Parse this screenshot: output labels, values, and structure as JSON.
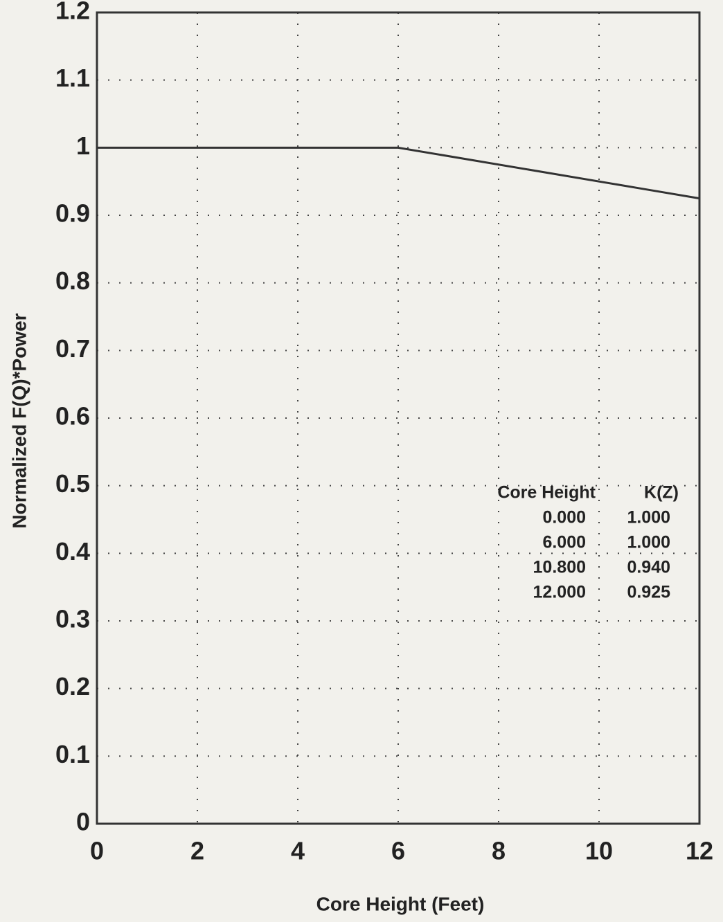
{
  "chart_data": {
    "type": "line",
    "x_label": "Core Height (Feet)",
    "y_label": "Normalized F(Q)*Power",
    "x": [
      0,
      6,
      10.8,
      12
    ],
    "series": [
      {
        "name": "K(Z)",
        "color": "#333333",
        "values": [
          1,
          1,
          0.94,
          0.925
        ]
      }
    ],
    "xlim": [
      0,
      12
    ],
    "xticks": [
      0,
      2,
      4,
      6,
      8,
      10,
      12
    ],
    "ylim": [
      0,
      1.2
    ],
    "yticks": [
      0,
      0.1,
      0.2,
      0.3,
      0.4,
      0.5,
      0.6,
      0.7,
      0.8,
      0.9,
      1,
      1.1,
      1.2
    ],
    "grid": true,
    "table": {
      "header": [
        "Core Height",
        "K(Z)"
      ],
      "rows": [
        [
          "0.000",
          "1.000"
        ],
        [
          "6.000",
          "1.000"
        ],
        [
          "10.800",
          "0.940"
        ],
        [
          "12.000",
          "0.925"
        ]
      ]
    }
  }
}
